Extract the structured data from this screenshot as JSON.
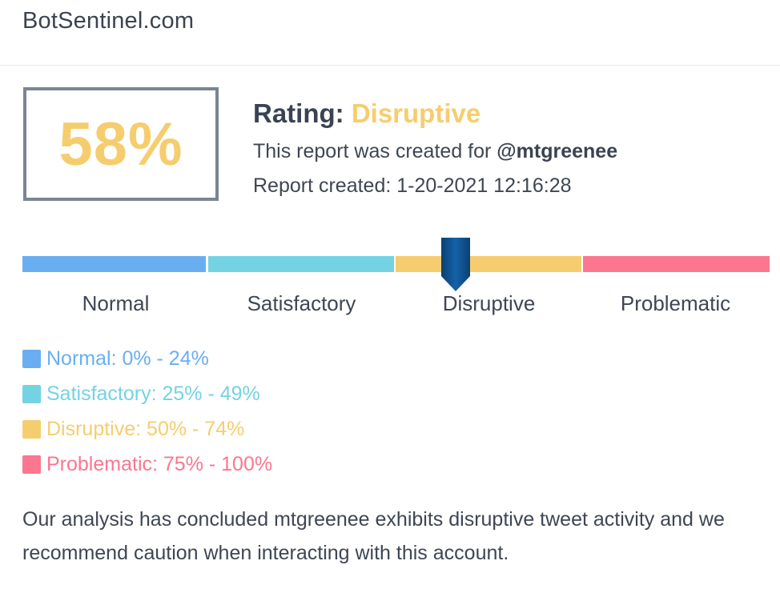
{
  "site": {
    "title": "BotSentinel.com"
  },
  "report": {
    "score": "58%",
    "score_fraction": 0.58,
    "rating_label": "Rating:",
    "rating_value": "Disruptive",
    "created_for_text": "This report was created for",
    "handle": "@mtgreenee",
    "created_text": "Report created: 1-20-2021 12:16:28"
  },
  "scale": {
    "segments": [
      {
        "label": "Normal",
        "color": "#6aaef2"
      },
      {
        "label": "Satisfactory",
        "color": "#74d3e3"
      },
      {
        "label": "Disruptive",
        "color": "#f6cd6e"
      },
      {
        "label": "Problematic",
        "color": "#fb768f"
      }
    ],
    "marker_color": "#0d4f8e"
  },
  "legend": {
    "items": [
      {
        "text": "Normal: 0% - 24%",
        "color": "#6aaef2"
      },
      {
        "text": "Satisfactory: 25% - 49%",
        "color": "#74d3e3"
      },
      {
        "text": "Disruptive: 50% - 74%",
        "color": "#f6cd6e"
      },
      {
        "text": "Problematic: 75% - 100%",
        "color": "#fb768f"
      }
    ]
  },
  "summary": {
    "text": "Our analysis has concluded mtgreenee exhibits disruptive tweet activity and we recommend caution when interacting with this account."
  }
}
